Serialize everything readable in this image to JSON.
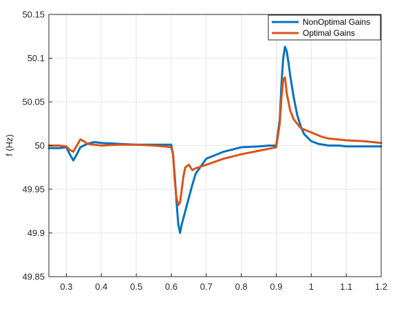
{
  "chart_data": {
    "type": "line",
    "title": "",
    "xlabel": "",
    "ylabel": "f (Hz)",
    "xlim": [
      0.25,
      1.2
    ],
    "ylim": [
      49.85,
      50.15
    ],
    "xticks": [
      0.3,
      0.4,
      0.5,
      0.6,
      0.7,
      0.8,
      0.9,
      1,
      1.1,
      1.2
    ],
    "xtick_labels": [
      "0.3",
      "0.4",
      "0.5",
      "0.6",
      "0.7",
      "0.8",
      "0.9",
      "1",
      "1.1",
      "1.2"
    ],
    "yticks": [
      49.85,
      49.9,
      49.95,
      50,
      50.05,
      50.1,
      50.15
    ],
    "ytick_labels": [
      "49.85",
      "49.9",
      "49.95",
      "50",
      "50.05",
      "50.1",
      "50.15"
    ],
    "grid": true,
    "legend_position": "top-right",
    "series": [
      {
        "name": "NonOptimal Gains",
        "color": "#0072BD",
        "x": [
          0.25,
          0.28,
          0.3,
          0.31,
          0.32,
          0.33,
          0.34,
          0.36,
          0.38,
          0.4,
          0.45,
          0.5,
          0.55,
          0.58,
          0.6,
          0.605,
          0.61,
          0.615,
          0.62,
          0.625,
          0.63,
          0.64,
          0.65,
          0.66,
          0.67,
          0.7,
          0.75,
          0.8,
          0.85,
          0.88,
          0.9,
          0.91,
          0.915,
          0.92,
          0.925,
          0.93,
          0.935,
          0.94,
          0.95,
          0.96,
          0.97,
          0.98,
          1.0,
          1.02,
          1.05,
          1.08,
          1.1,
          1.15,
          1.2
        ],
        "y": [
          49.997,
          49.997,
          49.998,
          49.99,
          49.983,
          49.99,
          49.998,
          50.002,
          50.004,
          50.003,
          50.002,
          50.001,
          50.001,
          50.001,
          50.001,
          49.99,
          49.965,
          49.935,
          49.91,
          49.9,
          49.91,
          49.925,
          49.94,
          49.955,
          49.968,
          49.985,
          49.993,
          49.998,
          49.999,
          50.0,
          50.0,
          50.03,
          50.07,
          50.1,
          50.113,
          50.108,
          50.095,
          50.08,
          50.055,
          50.035,
          50.022,
          50.013,
          50.005,
          50.002,
          50.0,
          50.0,
          49.999,
          49.999,
          49.999
        ]
      },
      {
        "name": "Optimal Gains",
        "color": "#D95319",
        "x": [
          0.25,
          0.28,
          0.3,
          0.31,
          0.32,
          0.33,
          0.34,
          0.35,
          0.36,
          0.38,
          0.4,
          0.45,
          0.5,
          0.55,
          0.58,
          0.6,
          0.605,
          0.61,
          0.615,
          0.62,
          0.625,
          0.63,
          0.635,
          0.64,
          0.65,
          0.66,
          0.67,
          0.7,
          0.75,
          0.8,
          0.85,
          0.9,
          0.91,
          0.915,
          0.92,
          0.925,
          0.93,
          0.935,
          0.94,
          0.95,
          0.97,
          1.0,
          1.03,
          1.05,
          1.1,
          1.15,
          1.2
        ],
        "y": [
          50.0,
          50.0,
          49.999,
          49.995,
          49.993,
          50.0,
          50.007,
          50.005,
          50.002,
          50.001,
          50.0,
          50.001,
          50.001,
          50.0,
          49.999,
          49.998,
          49.99,
          49.96,
          49.94,
          49.932,
          49.935,
          49.95,
          49.965,
          49.975,
          49.978,
          49.972,
          49.974,
          49.978,
          49.985,
          49.99,
          49.994,
          49.998,
          50.025,
          50.055,
          50.075,
          50.078,
          50.06,
          50.05,
          50.04,
          50.03,
          50.02,
          50.015,
          50.01,
          50.008,
          50.006,
          50.005,
          50.003
        ]
      }
    ]
  }
}
